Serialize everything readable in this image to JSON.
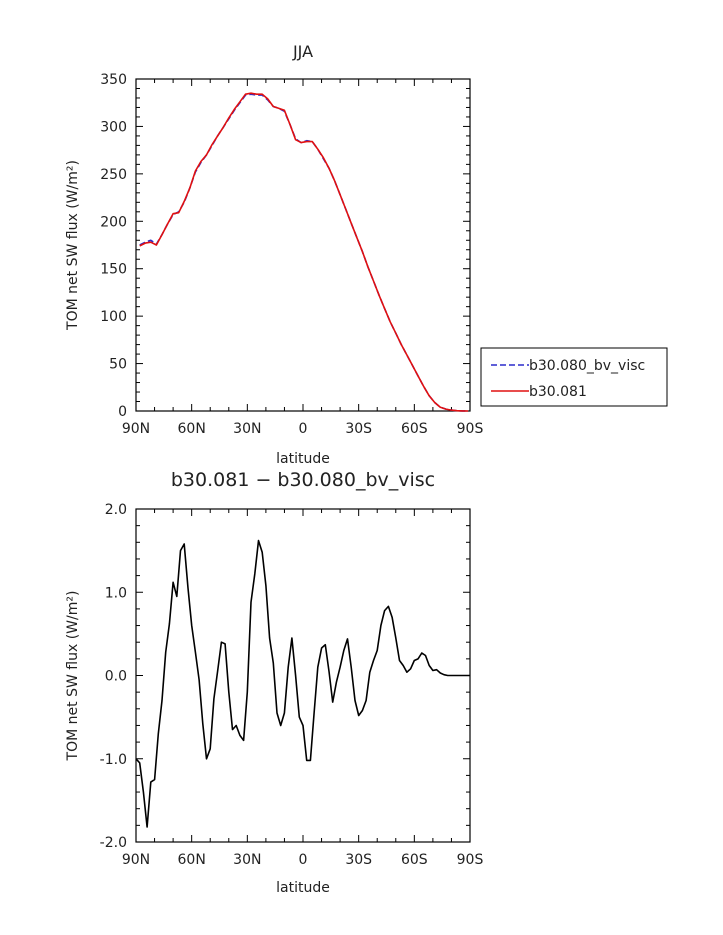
{
  "chart_data": [
    {
      "type": "line",
      "title": "JJA",
      "xlabel": "latitude",
      "ylabel": "TOM net SW flux (W/m²)",
      "xlim": [
        90,
        -90
      ],
      "ylim": [
        0,
        350
      ],
      "xticks": [
        "90N",
        "60N",
        "30N",
        "0",
        "30S",
        "60S",
        "90S"
      ],
      "yticks": [
        "0",
        "50",
        "100",
        "150",
        "200",
        "250",
        "300",
        "350"
      ],
      "legend_position": "right",
      "x": [
        88,
        85,
        82,
        79,
        76,
        73,
        70,
        67,
        64,
        61,
        58,
        55,
        52,
        49,
        46,
        43,
        40,
        37,
        34,
        31,
        28,
        25,
        22,
        19,
        16,
        13,
        10,
        7,
        4,
        1,
        -2,
        -5,
        -8,
        -11,
        -14,
        -17,
        -20,
        -23,
        -26,
        -29,
        -32,
        -35,
        -38,
        -41,
        -44,
        -47,
        -50,
        -53,
        -56,
        -59,
        -62,
        -65,
        -68,
        -71,
        -74,
        -77,
        -80,
        -83,
        -86,
        -89
      ],
      "series": [
        {
          "name": "b30.080_bv_visc",
          "color": "#2b2bcc",
          "dash": "dashed",
          "values": [
            175,
            178,
            180,
            176,
            186,
            197,
            207,
            210,
            220,
            235,
            252,
            262,
            270,
            280,
            290,
            299,
            308,
            317,
            325,
            333,
            334,
            333,
            333,
            328,
            321,
            319,
            316,
            302,
            287,
            283,
            285,
            284,
            276,
            266,
            256,
            243,
            228,
            213,
            198,
            183,
            168,
            152,
            137,
            122,
            108,
            94,
            82,
            70,
            59,
            48,
            37,
            26,
            16,
            9,
            4,
            2,
            1,
            0.3,
            0.1,
            0
          ]
        },
        {
          "name": "b30.081",
          "color": "#e01010",
          "dash": "solid",
          "values": [
            174,
            177,
            178,
            175,
            186,
            197,
            208,
            209,
            221,
            235,
            253,
            263,
            270,
            281,
            290,
            299,
            309,
            318,
            326,
            334,
            335,
            334,
            334,
            329,
            321,
            319,
            317,
            302,
            286,
            283,
            284,
            284,
            276,
            267,
            256,
            243,
            228,
            213,
            198,
            183,
            168,
            152,
            137,
            122,
            108,
            94,
            82,
            70,
            59,
            48,
            37,
            26,
            16,
            9,
            4,
            2,
            1,
            0.3,
            0.1,
            0
          ]
        }
      ]
    },
    {
      "type": "line",
      "title": "b30.081 − b30.080_bv_visc",
      "xlabel": "latitude",
      "ylabel": "TOM net SW flux (W/m²)",
      "xlim": [
        90,
        -90
      ],
      "ylim": [
        -2,
        2
      ],
      "xticks": [
        "90N",
        "60N",
        "30N",
        "0",
        "30S",
        "60S",
        "90S"
      ],
      "yticks": [
        "-2.0",
        "-1.0",
        "0.0",
        "1.0",
        "2.0"
      ],
      "x": [
        90,
        88,
        86,
        84,
        82,
        80,
        78,
        76,
        74,
        72,
        70,
        68,
        66,
        64,
        62,
        60,
        58,
        56,
        54,
        52,
        50,
        48,
        46,
        44,
        42,
        40,
        38,
        36,
        34,
        32,
        30,
        28,
        26,
        24,
        22,
        20,
        18,
        16,
        14,
        12,
        10,
        8,
        6,
        4,
        2,
        0,
        -2,
        -4,
        -6,
        -8,
        -10,
        -12,
        -14,
        -16,
        -18,
        -20,
        -22,
        -24,
        -26,
        -28,
        -30,
        -32,
        -34,
        -36,
        -38,
        -40,
        -42,
        -44,
        -46,
        -48,
        -50,
        -52,
        -54,
        -56,
        -58,
        -60,
        -62,
        -64,
        -66,
        -68,
        -70,
        -72,
        -74,
        -76,
        -78,
        -80,
        -82,
        -84,
        -86,
        -88,
        -90
      ],
      "series": [
        {
          "name": "",
          "color": "#000000",
          "dash": "solid",
          "values": [
            -1.0,
            -1.05,
            -1.4,
            -1.82,
            -1.28,
            -1.25,
            -0.7,
            -0.3,
            0.28,
            0.62,
            1.12,
            0.95,
            1.5,
            1.58,
            1.05,
            0.6,
            0.28,
            -0.05,
            -0.58,
            -1.0,
            -0.88,
            -0.28,
            0.05,
            0.4,
            0.38,
            -0.2,
            -0.65,
            -0.6,
            -0.72,
            -0.78,
            -0.2,
            0.88,
            1.22,
            1.62,
            1.48,
            1.08,
            0.45,
            0.15,
            -0.45,
            -0.6,
            -0.45,
            0.1,
            0.45,
            0.0,
            -0.5,
            -0.6,
            -1.02,
            -1.02,
            -0.45,
            0.1,
            0.33,
            0.37,
            0.05,
            -0.32,
            -0.08,
            0.1,
            0.3,
            0.44,
            0.1,
            -0.3,
            -0.48,
            -0.42,
            -0.3,
            0.04,
            0.18,
            0.3,
            0.6,
            0.78,
            0.83,
            0.7,
            0.45,
            0.18,
            0.12,
            0.04,
            0.08,
            0.18,
            0.2,
            0.27,
            0.24,
            0.12,
            0.06,
            0.07,
            0.03,
            0.01,
            0.0,
            0.0,
            0.0,
            0.0,
            0.0,
            0.0,
            0.0
          ]
        }
      ]
    }
  ]
}
